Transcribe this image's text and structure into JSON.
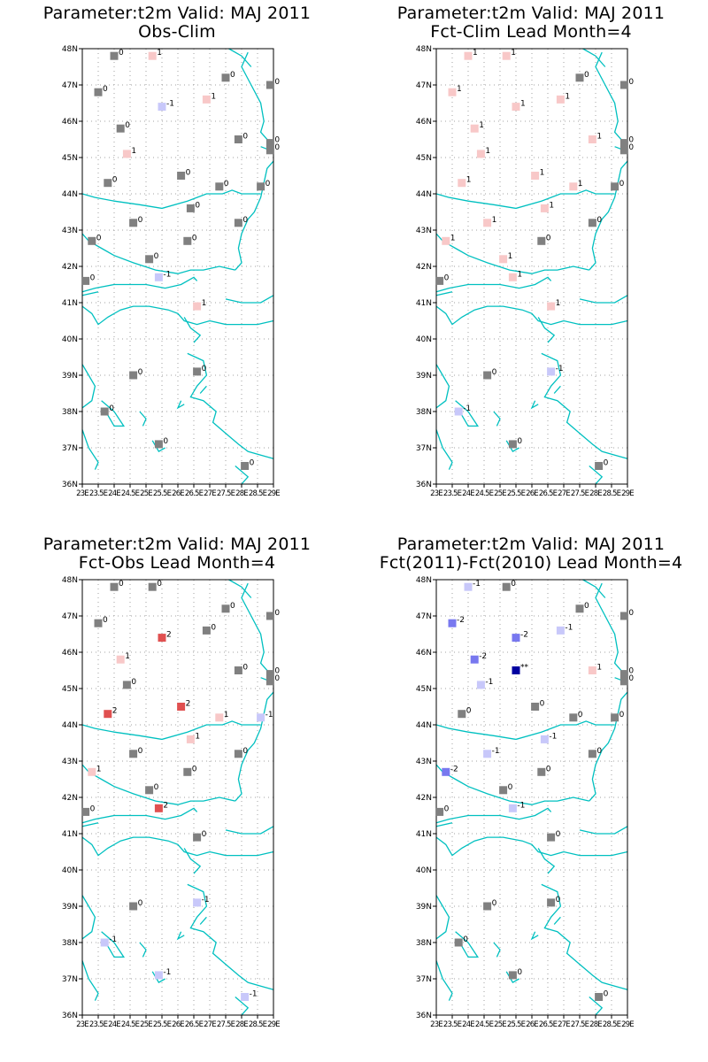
{
  "lat_ticks": [
    "36N",
    "37N",
    "38N",
    "39N",
    "40N",
    "41N",
    "42N",
    "43N",
    "44N",
    "45N",
    "46N",
    "47N",
    "48N"
  ],
  "lon_ticks": [
    "23E",
    "23.5E",
    "24E",
    "24.5E",
    "25E",
    "25.5E",
    "26E",
    "26.5E",
    "27E",
    "27.5E",
    "28E",
    "28.5E",
    "29E"
  ],
  "extent": {
    "lon_min": 23,
    "lon_max": 29,
    "lat_min": 36,
    "lat_max": 48
  },
  "colors": {
    "frame": "#000000",
    "coast": "#00c0c0",
    "grid": "#a0a0a0",
    "neg2": "#0000a0",
    "neg1": "#7878ef",
    "neg0": "#c8c8fa",
    "zero": "#808080",
    "pos0": "#f8c8c8",
    "pos1": "#f08080",
    "pos2": "#e05050"
  },
  "panels": [
    {
      "title_line1": "Parameter:t2m Valid: MAJ 2011",
      "title_line2": "Obs-Clim",
      "stations": [
        {
          "lon": 24,
          "lat": 47.8,
          "value": "0"
        },
        {
          "lon": 25.2,
          "lat": 47.8,
          "value": "1"
        },
        {
          "lon": 27.5,
          "lat": 47.2,
          "value": "0"
        },
        {
          "lon": 28.9,
          "lat": 47,
          "value": "0"
        },
        {
          "lon": 23.5,
          "lat": 46.8,
          "value": "0"
        },
        {
          "lon": 25.5,
          "lat": 46.4,
          "value": "-1"
        },
        {
          "lon": 26.9,
          "lat": 46.6,
          "value": "1"
        },
        {
          "lon": 24.2,
          "lat": 45.8,
          "value": "0"
        },
        {
          "lon": 27.9,
          "lat": 45.5,
          "value": "0"
        },
        {
          "lon": 28.9,
          "lat": 45.4,
          "value": "0"
        },
        {
          "lon": 28.9,
          "lat": 45.2,
          "value": "0"
        },
        {
          "lon": 24.4,
          "lat": 45.1,
          "value": "1"
        },
        {
          "lon": 26.1,
          "lat": 44.5,
          "value": "0"
        },
        {
          "lon": 23.8,
          "lat": 44.3,
          "value": "0"
        },
        {
          "lon": 27.3,
          "lat": 44.2,
          "value": "0"
        },
        {
          "lon": 28.6,
          "lat": 44.2,
          "value": "0"
        },
        {
          "lon": 26.4,
          "lat": 43.6,
          "value": "0"
        },
        {
          "lon": 24.6,
          "lat": 43.2,
          "value": "0"
        },
        {
          "lon": 27.9,
          "lat": 43.2,
          "value": "0"
        },
        {
          "lon": 23.3,
          "lat": 42.7,
          "value": "0"
        },
        {
          "lon": 26.3,
          "lat": 42.7,
          "value": "0"
        },
        {
          "lon": 25.1,
          "lat": 42.2,
          "value": "0"
        },
        {
          "lon": 25.4,
          "lat": 41.7,
          "value": "-1"
        },
        {
          "lon": 23.1,
          "lat": 41.6,
          "value": "0"
        },
        {
          "lon": 26.6,
          "lat": 40.9,
          "value": "1"
        },
        {
          "lon": 24.6,
          "lat": 39,
          "value": "0"
        },
        {
          "lon": 26.6,
          "lat": 39.1,
          "value": "0"
        },
        {
          "lon": 23.7,
          "lat": 38,
          "value": "0"
        },
        {
          "lon": 25.4,
          "lat": 37.1,
          "value": "0"
        },
        {
          "lon": 28.1,
          "lat": 36.5,
          "value": "0"
        }
      ]
    },
    {
      "title_line1": "Parameter:t2m Valid: MAJ 2011",
      "title_line2": "Fct-Clim Lead Month=4",
      "stations": [
        {
          "lon": 24,
          "lat": 47.8,
          "value": "1"
        },
        {
          "lon": 25.2,
          "lat": 47.8,
          "value": "1"
        },
        {
          "lon": 27.5,
          "lat": 47.2,
          "value": "0"
        },
        {
          "lon": 28.9,
          "lat": 47,
          "value": "0"
        },
        {
          "lon": 23.5,
          "lat": 46.8,
          "value": "1"
        },
        {
          "lon": 25.5,
          "lat": 46.4,
          "value": "1"
        },
        {
          "lon": 26.9,
          "lat": 46.6,
          "value": "1"
        },
        {
          "lon": 24.2,
          "lat": 45.8,
          "value": "1"
        },
        {
          "lon": 27.9,
          "lat": 45.5,
          "value": "1"
        },
        {
          "lon": 28.9,
          "lat": 45.4,
          "value": "0"
        },
        {
          "lon": 28.9,
          "lat": 45.2,
          "value": "0"
        },
        {
          "lon": 24.4,
          "lat": 45.1,
          "value": "1"
        },
        {
          "lon": 26.1,
          "lat": 44.5,
          "value": "1"
        },
        {
          "lon": 23.8,
          "lat": 44.3,
          "value": "1"
        },
        {
          "lon": 27.3,
          "lat": 44.2,
          "value": "1"
        },
        {
          "lon": 28.6,
          "lat": 44.2,
          "value": "0"
        },
        {
          "lon": 26.4,
          "lat": 43.6,
          "value": "1"
        },
        {
          "lon": 24.6,
          "lat": 43.2,
          "value": "1"
        },
        {
          "lon": 27.9,
          "lat": 43.2,
          "value": "0"
        },
        {
          "lon": 23.3,
          "lat": 42.7,
          "value": "1"
        },
        {
          "lon": 26.3,
          "lat": 42.7,
          "value": "0"
        },
        {
          "lon": 25.1,
          "lat": 42.2,
          "value": "1"
        },
        {
          "lon": 25.4,
          "lat": 41.7,
          "value": "1"
        },
        {
          "lon": 23.1,
          "lat": 41.6,
          "value": "0"
        },
        {
          "lon": 26.6,
          "lat": 40.9,
          "value": "1"
        },
        {
          "lon": 24.6,
          "lat": 39,
          "value": "0"
        },
        {
          "lon": 26.6,
          "lat": 39.1,
          "value": "-1"
        },
        {
          "lon": 23.7,
          "lat": 38,
          "value": "-1"
        },
        {
          "lon": 25.4,
          "lat": 37.1,
          "value": "0"
        },
        {
          "lon": 28.1,
          "lat": 36.5,
          "value": "0"
        }
      ]
    },
    {
      "title_line1": "Parameter:t2m Valid: MAJ 2011",
      "title_line2": "Fct-Obs Lead Month=4",
      "stations": [
        {
          "lon": 24,
          "lat": 47.8,
          "value": "0"
        },
        {
          "lon": 25.2,
          "lat": 47.8,
          "value": "0"
        },
        {
          "lon": 27.5,
          "lat": 47.2,
          "value": "0"
        },
        {
          "lon": 28.9,
          "lat": 47,
          "value": "0"
        },
        {
          "lon": 23.5,
          "lat": 46.8,
          "value": "0"
        },
        {
          "lon": 25.5,
          "lat": 46.4,
          "value": "2"
        },
        {
          "lon": 26.9,
          "lat": 46.6,
          "value": "0"
        },
        {
          "lon": 24.2,
          "lat": 45.8,
          "value": "1"
        },
        {
          "lon": 27.9,
          "lat": 45.5,
          "value": "0"
        },
        {
          "lon": 28.9,
          "lat": 45.4,
          "value": "0"
        },
        {
          "lon": 28.9,
          "lat": 45.2,
          "value": "0"
        },
        {
          "lon": 24.4,
          "lat": 45.1,
          "value": "0"
        },
        {
          "lon": 26.1,
          "lat": 44.5,
          "value": "2"
        },
        {
          "lon": 23.8,
          "lat": 44.3,
          "value": "2"
        },
        {
          "lon": 27.3,
          "lat": 44.2,
          "value": "1"
        },
        {
          "lon": 28.6,
          "lat": 44.2,
          "value": "-1"
        },
        {
          "lon": 26.4,
          "lat": 43.6,
          "value": "1"
        },
        {
          "lon": 24.6,
          "lat": 43.2,
          "value": "0"
        },
        {
          "lon": 27.9,
          "lat": 43.2,
          "value": "0"
        },
        {
          "lon": 23.3,
          "lat": 42.7,
          "value": "1"
        },
        {
          "lon": 26.3,
          "lat": 42.7,
          "value": "0"
        },
        {
          "lon": 25.1,
          "lat": 42.2,
          "value": "0"
        },
        {
          "lon": 25.4,
          "lat": 41.7,
          "value": "2"
        },
        {
          "lon": 23.1,
          "lat": 41.6,
          "value": "0"
        },
        {
          "lon": 26.6,
          "lat": 40.9,
          "value": "0"
        },
        {
          "lon": 24.6,
          "lat": 39,
          "value": "0"
        },
        {
          "lon": 26.6,
          "lat": 39.1,
          "value": "-1"
        },
        {
          "lon": 23.7,
          "lat": 38,
          "value": "-1"
        },
        {
          "lon": 25.4,
          "lat": 37.1,
          "value": "-1"
        },
        {
          "lon": 28.1,
          "lat": 36.5,
          "value": "-1"
        }
      ]
    },
    {
      "title_line1": "Parameter:t2m Valid: MAJ 2011",
      "title_line2": "Fct(2011)-Fct(2010) Lead Month=4",
      "stations": [
        {
          "lon": 24,
          "lat": 47.8,
          "value": "-1"
        },
        {
          "lon": 25.2,
          "lat": 47.8,
          "value": "0"
        },
        {
          "lon": 27.5,
          "lat": 47.2,
          "value": "0"
        },
        {
          "lon": 28.9,
          "lat": 47,
          "value": "0"
        },
        {
          "lon": 23.5,
          "lat": 46.8,
          "value": "-2"
        },
        {
          "lon": 25.5,
          "lat": 46.4,
          "value": "-2"
        },
        {
          "lon": 26.9,
          "lat": 46.6,
          "value": "-1"
        },
        {
          "lon": 24.2,
          "lat": 45.8,
          "value": "-2"
        },
        {
          "lon": 27.9,
          "lat": 45.5,
          "value": "1"
        },
        {
          "lon": 28.9,
          "lat": 45.4,
          "value": "0"
        },
        {
          "lon": 28.9,
          "lat": 45.2,
          "value": "0"
        },
        {
          "lon": 24.4,
          "lat": 45.1,
          "value": "-1"
        },
        {
          "lon": 25.5,
          "lat": 45.5,
          "value": "**"
        },
        {
          "lon": 26.1,
          "lat": 44.5,
          "value": "0"
        },
        {
          "lon": 23.8,
          "lat": 44.3,
          "value": "0"
        },
        {
          "lon": 27.3,
          "lat": 44.2,
          "value": "0"
        },
        {
          "lon": 28.6,
          "lat": 44.2,
          "value": "0"
        },
        {
          "lon": 26.4,
          "lat": 43.6,
          "value": "-1"
        },
        {
          "lon": 24.6,
          "lat": 43.2,
          "value": "-1"
        },
        {
          "lon": 27.9,
          "lat": 43.2,
          "value": "0"
        },
        {
          "lon": 23.3,
          "lat": 42.7,
          "value": "-2"
        },
        {
          "lon": 26.3,
          "lat": 42.7,
          "value": "0"
        },
        {
          "lon": 25.1,
          "lat": 42.2,
          "value": "0"
        },
        {
          "lon": 25.4,
          "lat": 41.7,
          "value": "-1"
        },
        {
          "lon": 23.1,
          "lat": 41.6,
          "value": "0"
        },
        {
          "lon": 26.6,
          "lat": 40.9,
          "value": "0"
        },
        {
          "lon": 24.6,
          "lat": 39,
          "value": "0"
        },
        {
          "lon": 26.6,
          "lat": 39.1,
          "value": "0"
        },
        {
          "lon": 23.7,
          "lat": 38,
          "value": "0"
        },
        {
          "lon": 25.4,
          "lat": 37.1,
          "value": "0"
        },
        {
          "lon": 28.1,
          "lat": 36.5,
          "value": "0"
        }
      ]
    }
  ]
}
